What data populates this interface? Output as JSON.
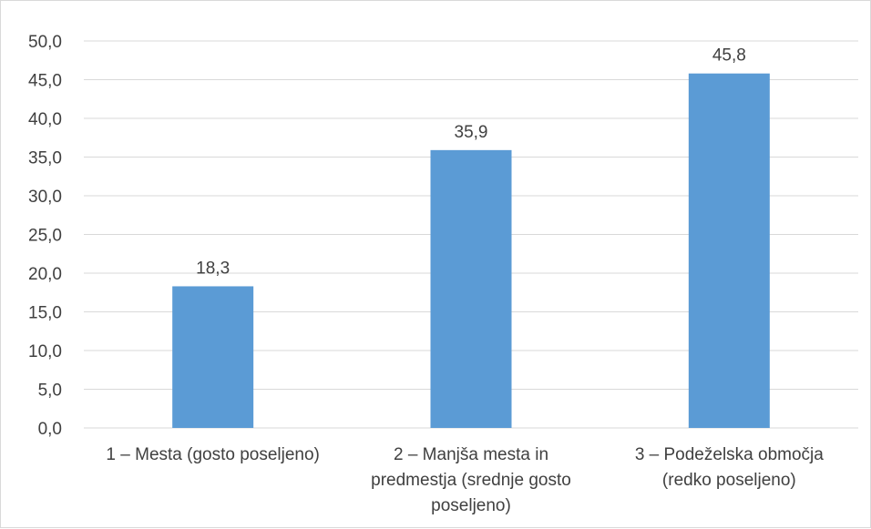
{
  "chart_data": {
    "type": "bar",
    "title": "",
    "xlabel": "",
    "ylabel": "",
    "categories": [
      [
        "1 – Mesta (gosto poseljeno)"
      ],
      [
        "2 – Manjša mesta in",
        "predmestja (srednje gosto",
        "poseljeno)"
      ],
      [
        "3 – Podeželska območja",
        "(redko poseljeno)"
      ]
    ],
    "values": [
      18.3,
      35.9,
      45.8
    ],
    "value_labels": [
      "18,3",
      "35,9",
      "45,8"
    ],
    "ylim": [
      0,
      50
    ],
    "yticks": [
      0,
      5,
      10,
      15,
      20,
      25,
      30,
      35,
      40,
      45,
      50
    ],
    "ytick_labels": [
      "0,0",
      "5,0",
      "10,0",
      "15,0",
      "20,0",
      "25,0",
      "30,0",
      "35,0",
      "40,0",
      "45,0",
      "50,0"
    ],
    "grid": true,
    "legend": "none",
    "colors": {
      "bar": "#5b9bd5",
      "grid": "#d9d9d9",
      "axis": "#d9d9d9",
      "text": "#404040"
    }
  }
}
